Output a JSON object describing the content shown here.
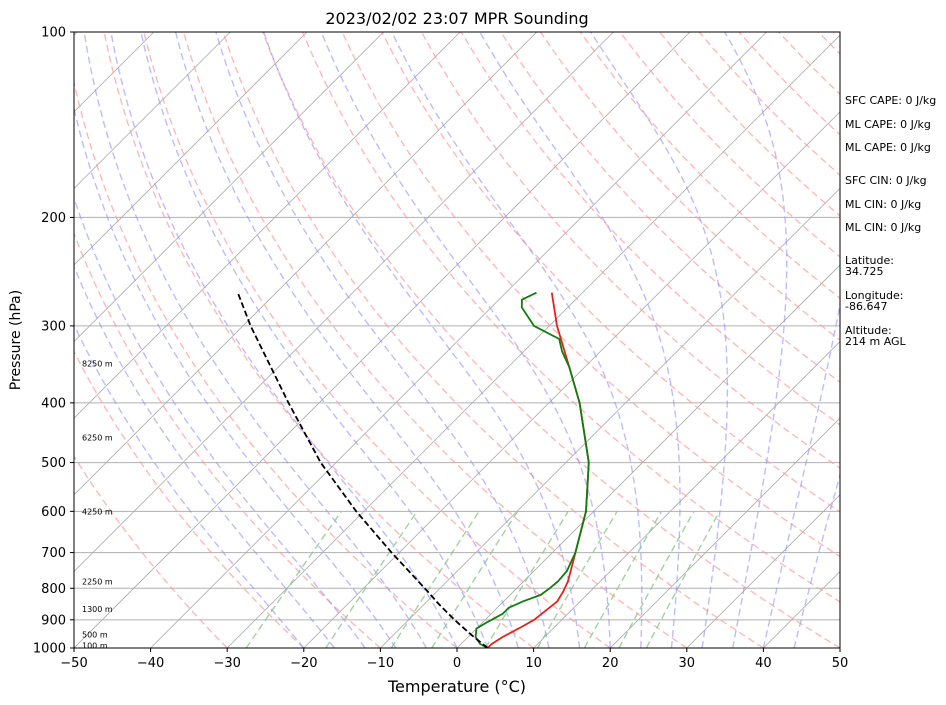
{
  "chart_data": {
    "type": "line",
    "title": "2023/02/02 23:07 MPR Sounding",
    "xlabel": "Temperature (°C)",
    "ylabel": "Pressure (hPa)",
    "xlim": [
      -50,
      50
    ],
    "ylim": [
      1000,
      100
    ],
    "y_scale": "log",
    "skew_t": true,
    "grid": true,
    "x_ticks": [
      "−50",
      "−40",
      "−30",
      "−20",
      "−10",
      "0",
      "10",
      "20",
      "30",
      "40",
      "50"
    ],
    "y_ticks": [
      "100",
      "200",
      "300",
      "400",
      "500",
      "600",
      "700",
      "800",
      "900",
      "1000"
    ],
    "height_labels": [
      {
        "text": "8250 m",
        "p": 345
      },
      {
        "text": "6250 m",
        "p": 455
      },
      {
        "text": "4250 m",
        "p": 600
      },
      {
        "text": "2250 m",
        "p": 780
      },
      {
        "text": "1300 m",
        "p": 865
      },
      {
        "text": "500 m",
        "p": 950
      },
      {
        "text": "100 m",
        "p": 990
      }
    ],
    "series": [
      {
        "kind": "temperature",
        "color": "#e8201d",
        "points": [
          {
            "p": 1000,
            "t": 4
          },
          {
            "p": 985,
            "t": 4
          },
          {
            "p": 960,
            "t": 4.5
          },
          {
            "p": 930,
            "t": 5.5
          },
          {
            "p": 900,
            "t": 6.4
          },
          {
            "p": 870,
            "t": 6.7
          },
          {
            "p": 840,
            "t": 7
          },
          {
            "p": 810,
            "t": 6.5
          },
          {
            "p": 780,
            "t": 5.8
          },
          {
            "p": 750,
            "t": 4.8
          },
          {
            "p": 700,
            "t": 3
          },
          {
            "p": 600,
            "t": -1
          },
          {
            "p": 500,
            "t": -7
          },
          {
            "p": 400,
            "t": -16
          },
          {
            "p": 350,
            "t": -22
          },
          {
            "p": 300,
            "t": -29
          },
          {
            "p": 265,
            "t": -34
          }
        ]
      },
      {
        "kind": "dewpoint",
        "color": "#0e7f0e",
        "points": [
          {
            "p": 1000,
            "t": 4
          },
          {
            "p": 985,
            "t": 2.5
          },
          {
            "p": 960,
            "t": 1
          },
          {
            "p": 930,
            "t": 0
          },
          {
            "p": 910,
            "t": 0.5
          },
          {
            "p": 880,
            "t": 1.5
          },
          {
            "p": 860,
            "t": 1.5
          },
          {
            "p": 840,
            "t": 2.5
          },
          {
            "p": 820,
            "t": 4
          },
          {
            "p": 800,
            "t": 4.3
          },
          {
            "p": 780,
            "t": 4.5
          },
          {
            "p": 750,
            "t": 4.3
          },
          {
            "p": 700,
            "t": 3
          },
          {
            "p": 600,
            "t": -1
          },
          {
            "p": 500,
            "t": -7
          },
          {
            "p": 400,
            "t": -16
          },
          {
            "p": 350,
            "t": -22
          },
          {
            "p": 330,
            "t": -25
          },
          {
            "p": 315,
            "t": -27
          },
          {
            "p": 300,
            "t": -32
          },
          {
            "p": 280,
            "t": -36
          },
          {
            "p": 272,
            "t": -37
          },
          {
            "p": 265,
            "t": -36
          }
        ]
      },
      {
        "kind": "parcel",
        "color": "#000000",
        "dashed": true,
        "points": [
          {
            "p": 1000,
            "t": 4
          },
          {
            "p": 950,
            "t": 0
          },
          {
            "p": 900,
            "t": -4
          },
          {
            "p": 850,
            "t": -8
          },
          {
            "p": 800,
            "t": -12
          },
          {
            "p": 700,
            "t": -21
          },
          {
            "p": 600,
            "t": -31
          },
          {
            "p": 500,
            "t": -42
          },
          {
            "p": 400,
            "t": -54
          },
          {
            "p": 300,
            "t": -69
          },
          {
            "p": 265,
            "t": -75
          }
        ]
      }
    ],
    "info_panel": [
      {
        "text": "SFC CAPE: 0 J/kg"
      },
      {
        "text": "ML CAPE: 0 J/kg"
      },
      {
        "text": "ML CAPE: 0 J/kg"
      },
      {
        "text": "SFC CIN: 0 J/kg"
      },
      {
        "text": "ML CIN: 0 J/kg"
      },
      {
        "text": "ML CIN: 0 J/kg"
      },
      {
        "text": "Latitude:"
      },
      {
        "text": "34.725"
      },
      {
        "text": "Longitude:"
      },
      {
        "text": "-86.647"
      },
      {
        "text": "Altitude:"
      },
      {
        "text": "214 m AGL"
      }
    ],
    "colors": {
      "isobar": "#b0b0b0",
      "isotherm": "#a9a9a9",
      "dry_adiabat": "#ff9a9a",
      "moist_adiabat": "#9090ff",
      "mixing_ratio": "#88c888"
    }
  }
}
